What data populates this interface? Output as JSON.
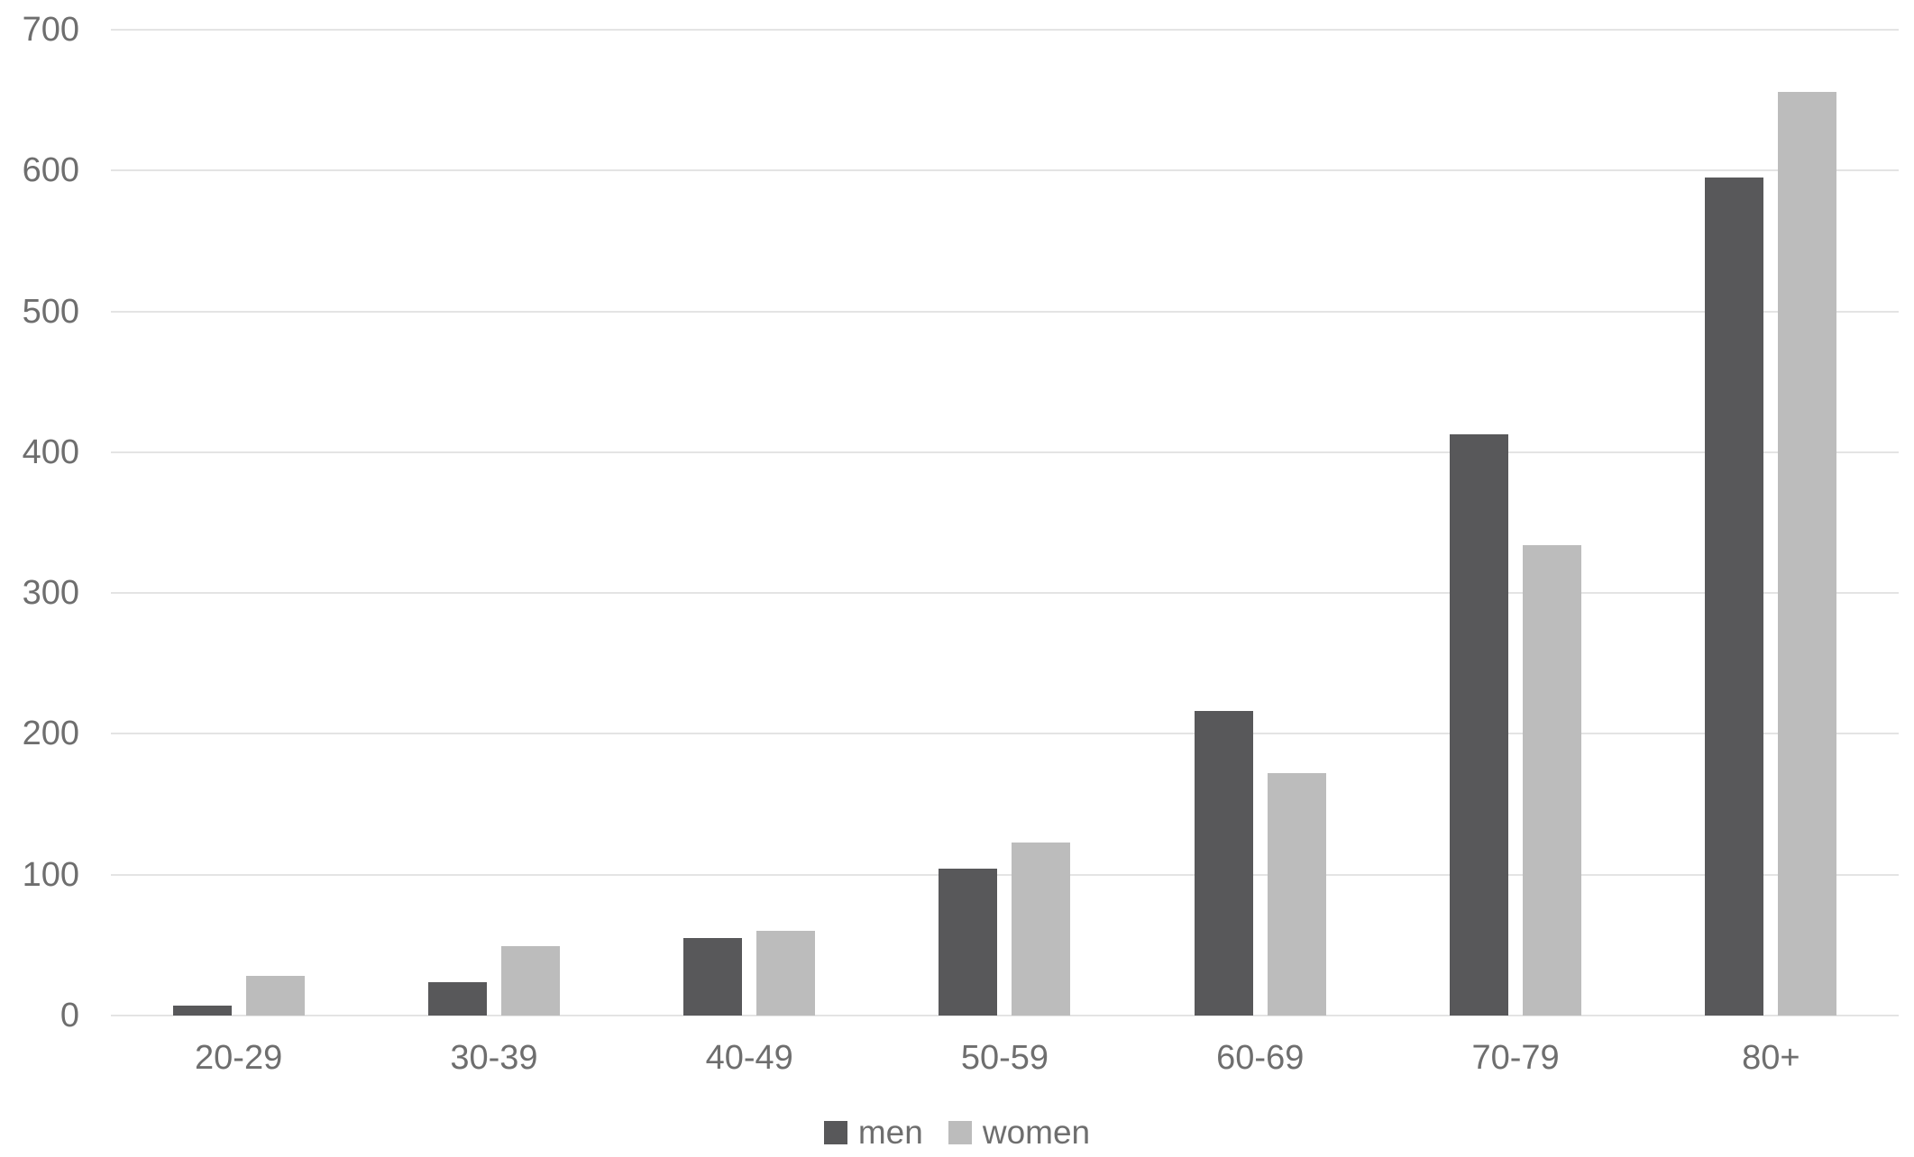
{
  "chart_data": {
    "type": "bar",
    "title": "",
    "xlabel": "",
    "ylabel": "",
    "categories": [
      "20-29",
      "30-39",
      "40-49",
      "50-59",
      "60-69",
      "70-79",
      "80+"
    ],
    "series": [
      {
        "name": "men",
        "color": "#58585a",
        "values": [
          7,
          24,
          55,
          104,
          216,
          413,
          595
        ]
      },
      {
        "name": "women",
        "color": "#bcbcbc",
        "values": [
          28,
          49,
          60,
          123,
          172,
          334,
          656
        ]
      }
    ],
    "ylim": [
      0,
      700
    ],
    "yticks": [
      0,
      100,
      200,
      300,
      400,
      500,
      600,
      700
    ],
    "grid": "horizontal",
    "legend_position": "bottom-center",
    "colors": {
      "tick_text": "#6e6e6e",
      "gridline": "#e4e4e4",
      "background": "#ffffff"
    }
  }
}
